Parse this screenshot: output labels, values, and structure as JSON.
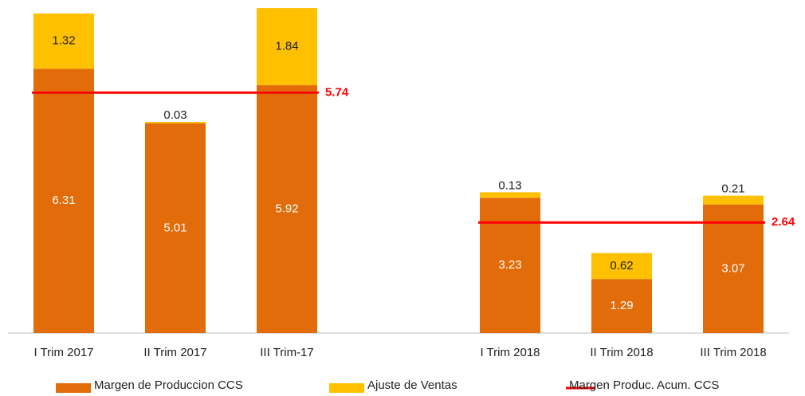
{
  "chart_data": {
    "type": "stacked_bar",
    "categories": [
      "I Trim 2017",
      "II Trim 2017",
      "III Trim-17",
      null,
      "I Trim 2018",
      "II Trim 2018",
      "III Trim 2018"
    ],
    "series": [
      {
        "name": "Margen de Produccion CCS",
        "color": "#e36c0a",
        "values": [
          6.31,
          5.01,
          5.92,
          null,
          3.23,
          1.29,
          3.07
        ]
      },
      {
        "name": "Ajuste de Ventas",
        "color": "#ffc000",
        "values": [
          1.32,
          0.03,
          1.84,
          null,
          0.13,
          0.62,
          0.21
        ]
      },
      {
        "name": "Margen Produc. Acum. CCS",
        "color": "#ff0000",
        "type": "line",
        "values": [
          5.74,
          5.74,
          5.74,
          null,
          2.64,
          2.64,
          2.64
        ]
      }
    ],
    "ylim": [
      0,
      7.8
    ],
    "legend": "bottom"
  }
}
